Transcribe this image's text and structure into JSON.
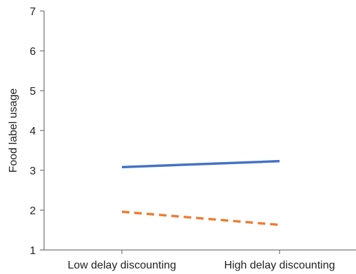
{
  "chart_data": {
    "type": "line",
    "title": "",
    "xlabel": "",
    "ylabel": "Food label usage",
    "categories": [
      "Low delay discounting",
      "High delay discounting"
    ],
    "ylim": [
      1,
      7
    ],
    "yticks": [
      "1",
      "2",
      "3",
      "4",
      "5",
      "6",
      "7"
    ],
    "grid": false,
    "legend": "none",
    "series": [
      {
        "values": [
          3.08,
          3.23
        ],
        "color": "#4472c4",
        "style": "solid"
      },
      {
        "values": [
          1.96,
          1.63
        ],
        "color": "#ed7d31",
        "style": "dashed"
      }
    ]
  }
}
